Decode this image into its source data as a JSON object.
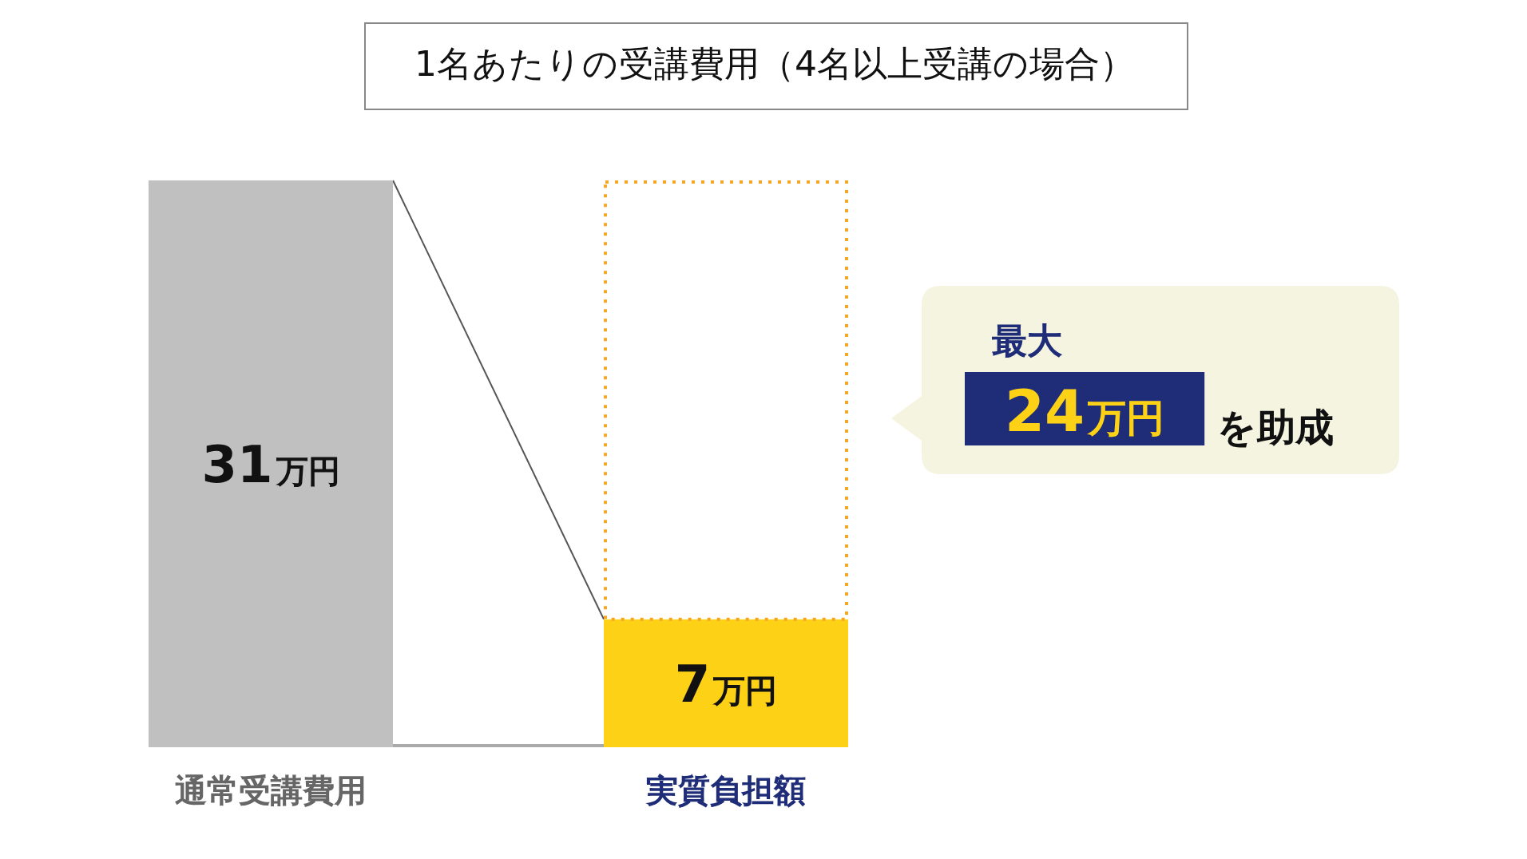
{
  "chart_data": {
    "type": "bar",
    "title": "1名あたりの受講費用（4名以上受講の場合）",
    "categories": [
      "通常受講費用",
      "実質負担額"
    ],
    "stacked": true,
    "series": [
      {
        "colors": [
          "#c0c0c0",
          "#fcd116"
        ],
        "values": [
          31,
          7
        ],
        "value_labels": [
          "31万円",
          "7万円"
        ]
      },
      {
        "color": "#f5a623",
        "values": [
          null,
          24
        ],
        "line_style": "dotted"
      }
    ],
    "annotations": [
      "最大",
      "24万円",
      "を助成"
    ]
  }
}
